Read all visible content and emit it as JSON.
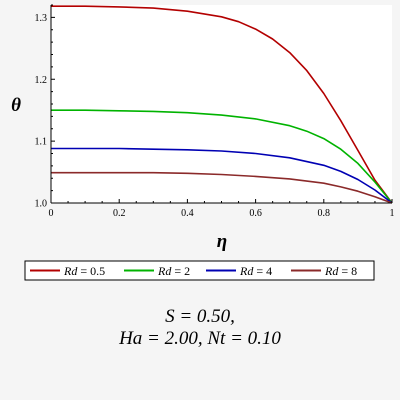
{
  "chart_data": {
    "type": "line",
    "xlabel": "η",
    "ylabel": "θ",
    "xlim": [
      0,
      1
    ],
    "ylim": [
      1.0,
      1.32
    ],
    "x_ticks": [
      "0",
      "0.2",
      "0.4",
      "0.6",
      "0.8",
      "1"
    ],
    "y_ticks": [
      "1.0",
      "1.1",
      "1.2",
      "1.3"
    ],
    "grid": false,
    "legend_position": "bottom",
    "series": [
      {
        "name": "Rd = 0.5",
        "legend_var": "Rd",
        "legend_val": "0.5",
        "color": "#b30000",
        "x": [
          0,
          0.1,
          0.2,
          0.3,
          0.4,
          0.5,
          0.55,
          0.6,
          0.65,
          0.7,
          0.75,
          0.8,
          0.85,
          0.9,
          0.95,
          1.0
        ],
        "y": [
          1.318,
          1.318,
          1.317,
          1.315,
          1.31,
          1.301,
          1.293,
          1.281,
          1.265,
          1.243,
          1.214,
          1.177,
          1.133,
          1.085,
          1.037,
          1.0
        ]
      },
      {
        "name": "Rd = 2",
        "legend_var": "Rd",
        "legend_val": "2",
        "color": "#00b300",
        "x": [
          0,
          0.1,
          0.2,
          0.3,
          0.4,
          0.5,
          0.6,
          0.7,
          0.75,
          0.8,
          0.85,
          0.9,
          0.95,
          1.0
        ],
        "y": [
          1.15,
          1.15,
          1.149,
          1.148,
          1.146,
          1.142,
          1.136,
          1.125,
          1.116,
          1.104,
          1.087,
          1.064,
          1.034,
          1.0
        ]
      },
      {
        "name": "Rd = 4",
        "legend_var": "Rd",
        "legend_val": "4",
        "color": "#0000b3",
        "x": [
          0,
          0.1,
          0.2,
          0.3,
          0.4,
          0.5,
          0.6,
          0.7,
          0.8,
          0.85,
          0.9,
          0.95,
          1.0
        ],
        "y": [
          1.088,
          1.088,
          1.088,
          1.087,
          1.086,
          1.084,
          1.08,
          1.073,
          1.061,
          1.051,
          1.038,
          1.021,
          1.0
        ]
      },
      {
        "name": "Rd = 8",
        "legend_var": "Rd",
        "legend_val": "8",
        "color": "#8b2a2a",
        "x": [
          0,
          0.1,
          0.2,
          0.3,
          0.4,
          0.5,
          0.6,
          0.7,
          0.8,
          0.85,
          0.9,
          0.95,
          1.0
        ],
        "y": [
          1.049,
          1.049,
          1.049,
          1.049,
          1.048,
          1.046,
          1.043,
          1.039,
          1.032,
          1.026,
          1.019,
          1.01,
          1.0
        ]
      }
    ]
  },
  "caption": {
    "line1": "S = 0.50,",
    "line2": "Ha = 2.00, Nt = 0.10"
  }
}
